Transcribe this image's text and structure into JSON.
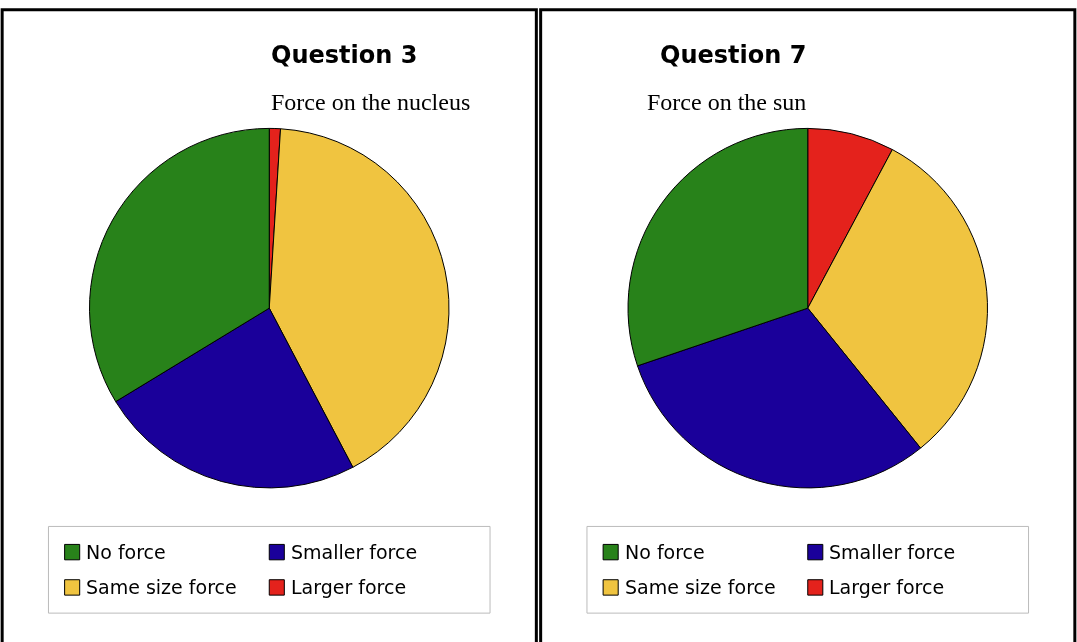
{
  "chart_data": [
    {
      "type": "pie",
      "title": "Question 3",
      "subtitle": "Force on the nucleus",
      "categories": [
        "No force",
        "Smaller force",
        "Same size force",
        "Larger force"
      ],
      "values": [
        33.7,
        24,
        41.3,
        1
      ],
      "colors": [
        "#28821a",
        "#1a009a",
        "#f0c440",
        "#e4221c"
      ],
      "legend": "bottom"
    },
    {
      "type": "pie",
      "title": "Question 7",
      "subtitle": "Force on the sun",
      "categories": [
        "No force",
        "Smaller force",
        "Same size force",
        "Larger force"
      ],
      "values": [
        30.2,
        30.6,
        31.4,
        7.8
      ],
      "colors": [
        "#28821a",
        "#1a009a",
        "#f0c440",
        "#e4221c"
      ],
      "legend": "bottom"
    }
  ]
}
